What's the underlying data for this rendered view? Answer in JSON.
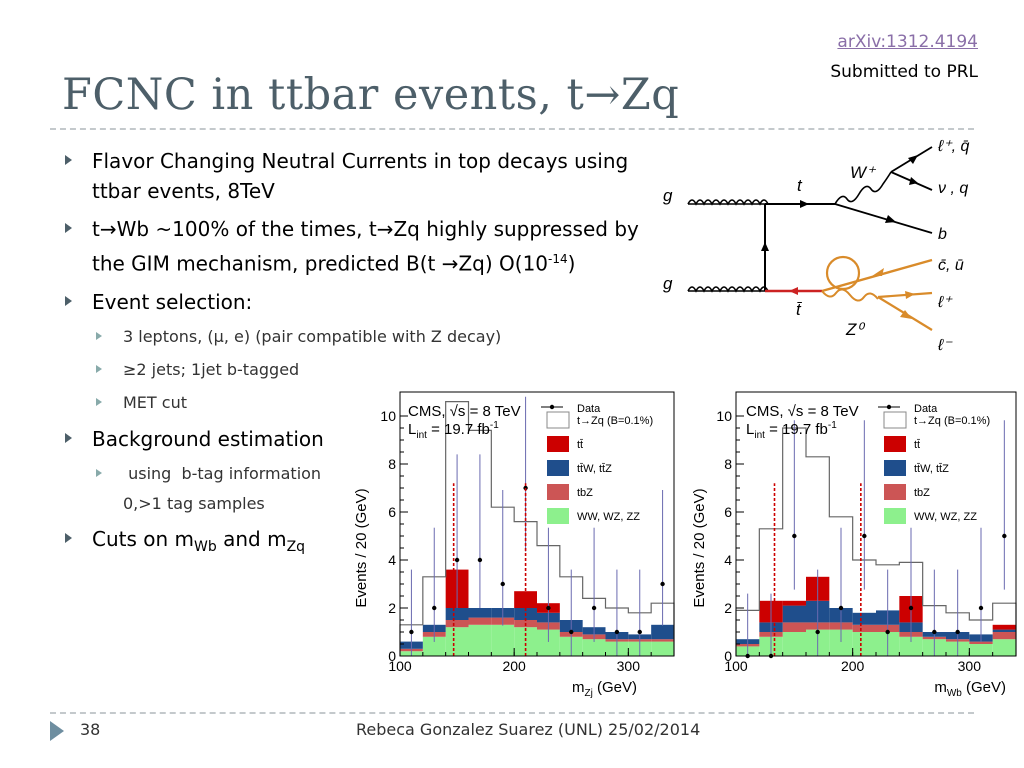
{
  "reference": {
    "arxiv": "arXiv:1312.4194",
    "status": "Submitted to PRL"
  },
  "title": "FCNC in ttbar events, t→Zq",
  "bullets": {
    "b1": "Flavor Changing Neutral Currents in top decays using ttbar events, 8TeV",
    "b2_pre": "t→Wb ~100% of the times, t→Zq highly suppressed by the GIM mechanism, predicted B(t →Zq) O(10",
    "b2_exp": "-14",
    "b2_post": ")",
    "b3": "Event selection:",
    "sub1": "3 leptons, (μ, e) (pair compatible with Z decay)",
    "sub2": "≥2 jets; 1jet b-tagged",
    "sub3": "MET cut",
    "b4": "Background estimation",
    "sub4": " using  b-tag information",
    "sub4b": "0,>1 tag samples",
    "b5_a": "Cuts on m",
    "b5_sub1": "Wb",
    "b5_b": " and m",
    "b5_sub2": "Zq"
  },
  "diagram": {
    "g1": "g",
    "g2": "g",
    "t": "t",
    "tbar": "t̄",
    "W": "W⁺",
    "Z": "Z⁰",
    "l1": "ℓ⁺, q̄",
    "nu": "ν , q",
    "b": "b",
    "cu": "c̄, ū",
    "lp": "ℓ⁺",
    "lm": "ℓ⁻"
  },
  "plot_text": {
    "cms": "CMS, √s = 8 TeV",
    "lumi": "L",
    "lumi_sub": "int",
    "lumi_val": " = 19.7 fb",
    "lumi_exp": "-1",
    "ylabel": "Events / 20 (GeV)",
    "legend": [
      "Data",
      "t→Zq (B=0.1%)",
      "tt̄",
      "tt̄W, tt̄Z",
      "tbZ",
      "WW, WZ, ZZ"
    ]
  },
  "colors": {
    "ttbar": "#cc0000",
    "ttV": "#1f4e8c",
    "tbZ": "#cc5555",
    "VV": "#8df08d",
    "signal": "#666666",
    "fcnc_line": "#cc0000"
  },
  "chart_data": [
    {
      "type": "bar",
      "title": "",
      "xlabel": "m_Zj (GeV)",
      "ylabel": "Events / 20 (GeV)",
      "xlim": [
        100,
        340
      ],
      "ylim": [
        0,
        11
      ],
      "yticks": [
        0,
        2,
        4,
        6,
        8,
        10
      ],
      "xticks": [
        100,
        200,
        300
      ],
      "bin_edges": [
        100,
        120,
        140,
        160,
        180,
        200,
        220,
        240,
        260,
        280,
        300,
        320,
        340
      ],
      "cut_lines": [
        147,
        210
      ],
      "series": [
        {
          "name": "WW, WZ, ZZ",
          "values": [
            0.2,
            0.8,
            1.2,
            1.3,
            1.3,
            1.2,
            1.1,
            0.8,
            0.7,
            0.6,
            0.6,
            0.6
          ]
        },
        {
          "name": "tbZ",
          "values": [
            0.1,
            0.2,
            0.3,
            0.3,
            0.3,
            0.3,
            0.3,
            0.2,
            0.2,
            0.1,
            0.1,
            0.1
          ]
        },
        {
          "name": "tt̄W, tt̄Z",
          "values": [
            0.3,
            0.3,
            0.5,
            0.4,
            0.4,
            0.5,
            0.4,
            0.5,
            0.3,
            0.3,
            0.2,
            0.6
          ]
        },
        {
          "name": "tt̄",
          "values": [
            0,
            0,
            1.6,
            0,
            0,
            0.7,
            0.4,
            0,
            0,
            0,
            0,
            0
          ]
        }
      ],
      "signal": {
        "name": "t→Zq (B=0.1%)",
        "values": [
          0.7,
          2.0,
          7.0,
          7.4,
          4.2,
          2.9,
          2.4,
          1.8,
          1.2,
          1.0,
          0.9,
          0.9
        ]
      },
      "data": {
        "name": "Data",
        "x": [
          110,
          130,
          150,
          170,
          190,
          210,
          230,
          250,
          270,
          290,
          310,
          330
        ],
        "y": [
          1,
          2,
          4,
          4,
          3,
          7,
          2,
          1,
          2,
          1,
          1,
          3
        ]
      }
    },
    {
      "type": "bar",
      "title": "",
      "xlabel": "m_Wb (GeV)",
      "ylabel": "Events / 20 (GeV)",
      "xlim": [
        100,
        340
      ],
      "ylim": [
        0,
        11
      ],
      "yticks": [
        0,
        2,
        4,
        6,
        8,
        10
      ],
      "xticks": [
        100,
        200,
        300
      ],
      "bin_edges": [
        100,
        120,
        140,
        160,
        180,
        200,
        220,
        240,
        260,
        280,
        300,
        320,
        340
      ],
      "cut_lines": [
        133,
        207
      ],
      "series": [
        {
          "name": "WW, WZ, ZZ",
          "values": [
            0.4,
            0.8,
            1.0,
            1.1,
            1.1,
            1.0,
            1.0,
            0.8,
            0.7,
            0.6,
            0.5,
            0.7
          ]
        },
        {
          "name": "tbZ",
          "values": [
            0.1,
            0.2,
            0.4,
            0.3,
            0.3,
            0.3,
            0.3,
            0.2,
            0.1,
            0.1,
            0.1,
            0.3
          ]
        },
        {
          "name": "tt̄W, tt̄Z",
          "values": [
            0.2,
            0.4,
            0.7,
            0.9,
            0.6,
            0.5,
            0.6,
            0.4,
            0.2,
            0.3,
            0.3,
            0.1
          ]
        },
        {
          "name": "tt̄",
          "values": [
            0,
            0.9,
            0.2,
            1.0,
            0,
            0,
            0,
            1.1,
            0,
            0,
            0,
            0.2
          ]
        }
      ],
      "signal": {
        "name": "t→Zq (B=0.1%)",
        "values": [
          1.2,
          3.0,
          7.2,
          5.0,
          3.8,
          2.2,
          1.9,
          1.4,
          1.1,
          0.8,
          0.6,
          0.9
        ]
      },
      "data": {
        "name": "Data",
        "x": [
          110,
          130,
          150,
          170,
          190,
          210,
          230,
          250,
          270,
          290,
          310,
          330
        ],
        "y": [
          0,
          0,
          5,
          1,
          2,
          5,
          1,
          2,
          1,
          1,
          2,
          5
        ]
      }
    }
  ],
  "footer": {
    "page": "38",
    "text": "Rebeca Gonzalez Suarez (UNL) 25/02/2014"
  }
}
